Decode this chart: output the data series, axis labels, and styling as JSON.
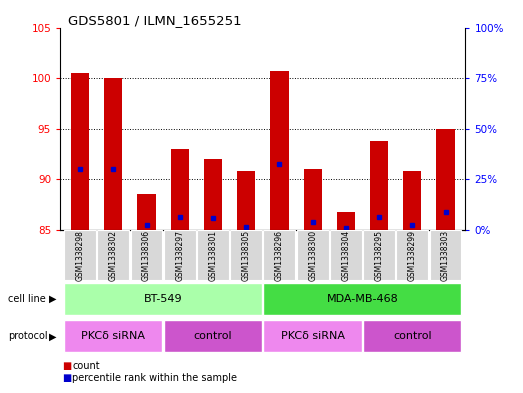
{
  "title": "GDS5801 / ILMN_1655251",
  "samples": [
    "GSM1338298",
    "GSM1338302",
    "GSM1338306",
    "GSM1338297",
    "GSM1338301",
    "GSM1338305",
    "GSM1338296",
    "GSM1338300",
    "GSM1338304",
    "GSM1338295",
    "GSM1338299",
    "GSM1338303"
  ],
  "bar_values": [
    100.5,
    100.0,
    88.5,
    93.0,
    92.0,
    90.8,
    100.7,
    91.0,
    86.8,
    93.8,
    90.8,
    95.0
  ],
  "blue_values": [
    91.0,
    91.0,
    85.5,
    86.3,
    86.2,
    85.3,
    91.5,
    85.8,
    85.2,
    86.3,
    85.5,
    86.8
  ],
  "ymin": 85,
  "ymax": 105,
  "yticks_left": [
    85,
    90,
    95,
    100,
    105
  ],
  "yticks_right": [
    0,
    25,
    50,
    75,
    100
  ],
  "yticks_right_vals": [
    85,
    90,
    95,
    100,
    105
  ],
  "grid_yticks": [
    90,
    95,
    100
  ],
  "bar_color": "#cc0000",
  "blue_color": "#0000cc",
  "cell_line_label": "cell line",
  "protocol_label": "protocol",
  "cell_lines": [
    {
      "label": "BT-549",
      "start": 0,
      "end": 5,
      "color": "#aaffaa"
    },
    {
      "label": "MDA-MB-468",
      "start": 6,
      "end": 11,
      "color": "#44dd44"
    }
  ],
  "protocols": [
    {
      "label": "PKCδ siRNA",
      "start": 0,
      "end": 2,
      "color": "#ee88ee"
    },
    {
      "label": "control",
      "start": 3,
      "end": 5,
      "color": "#cc55cc"
    },
    {
      "label": "PKCδ siRNA",
      "start": 6,
      "end": 8,
      "color": "#ee88ee"
    },
    {
      "label": "control",
      "start": 9,
      "end": 11,
      "color": "#cc55cc"
    }
  ],
  "legend_count_color": "#cc0000",
  "legend_percentile_color": "#0000cc",
  "bar_bottom": 85
}
